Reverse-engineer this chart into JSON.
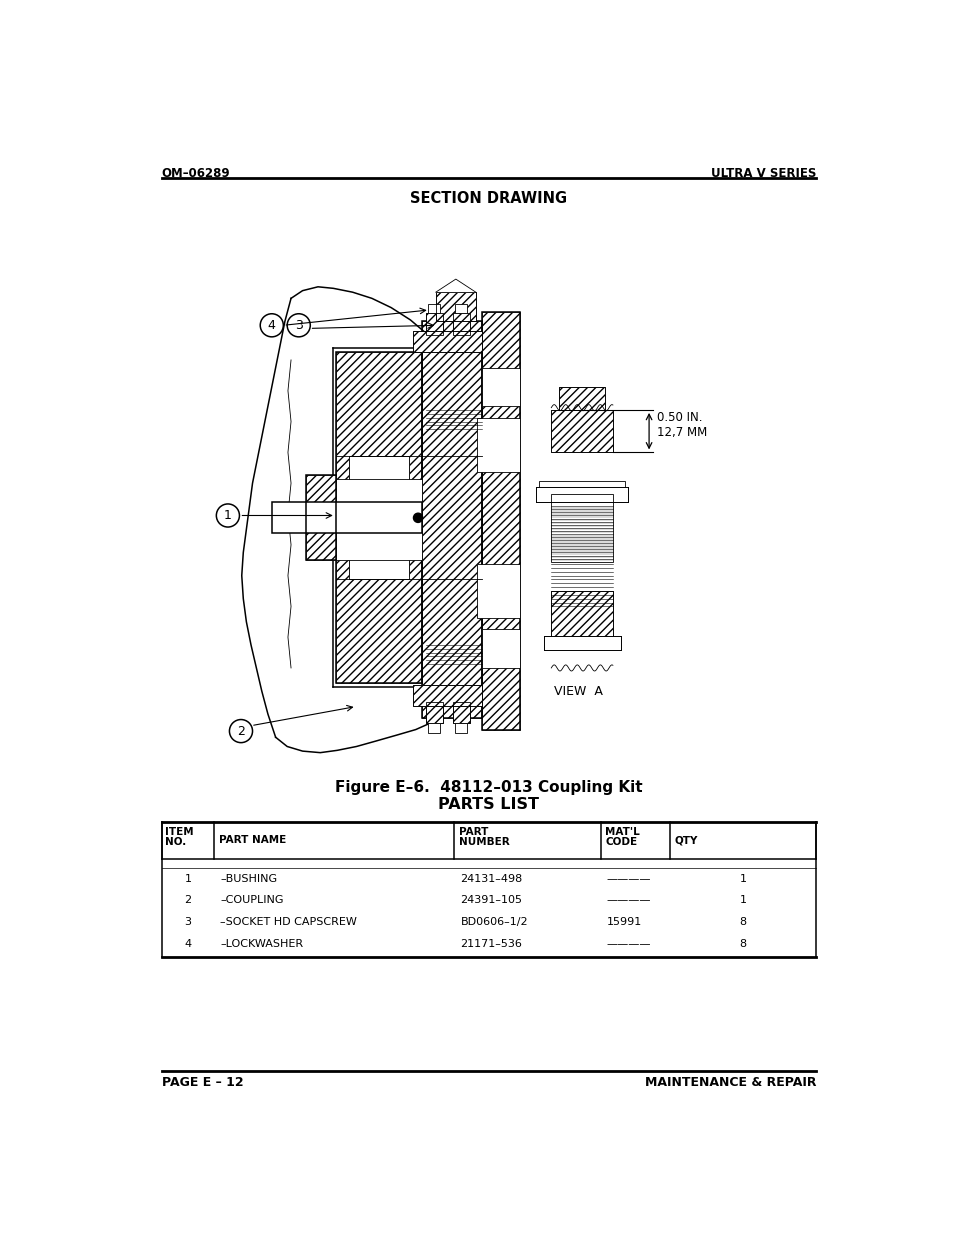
{
  "page_title_left": "OM–06289",
  "page_title_right": "ULTRA V SERIES",
  "section_title": "SECTION DRAWING",
  "figure_caption": "Figure E–6.  48112–013 Coupling Kit",
  "parts_list_title": "PARTS LIST",
  "table_headers": [
    "ITEM\nNO.",
    "PART NAME",
    "PART\nNUMBER",
    "MAT'L\nCODE",
    "QTY"
  ],
  "table_rows": [
    [
      "1",
      "–BUSHING",
      "24131–498",
      "————",
      "1"
    ],
    [
      "2",
      "–COUPLING",
      "24391–105",
      "————",
      "1"
    ],
    [
      "3",
      "–SOCKET HD CAPSCREW",
      "BD0606–1/2",
      "15991",
      "8"
    ],
    [
      "4",
      "–LOCKWASHER",
      "21171–536",
      "————",
      "8"
    ]
  ],
  "footer_left": "PAGE E – 12",
  "footer_right": "MAINTENANCE & REPAIR",
  "view_label": "VIEW  A",
  "dimension_label": "0.50 IN.\n12,7 MM",
  "background_color": "#ffffff",
  "text_color": "#000000"
}
